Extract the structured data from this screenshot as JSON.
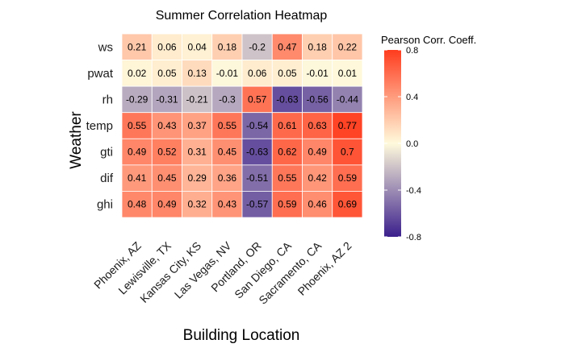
{
  "chart_data": {
    "type": "heatmap",
    "title": "Summer Correlation Heatmap",
    "xlabel": "Building Location",
    "ylabel": "Weather",
    "x_categories": [
      "Phoenix, AZ",
      "Lewisville, TX",
      "Kansas City, KS",
      "Las Vegas, NV",
      "Portland, OR",
      "San Diego, CA",
      "Sacramento, CA",
      "Phoenix, AZ 2"
    ],
    "y_categories": [
      "ws",
      "pwat",
      "rh",
      "temp",
      "gti",
      "dif",
      "ghi"
    ],
    "values": [
      [
        0.21,
        0.06,
        0.04,
        0.18,
        -0.2,
        0.47,
        0.18,
        0.22
      ],
      [
        0.02,
        0.05,
        0.13,
        -0.01,
        0.06,
        0.05,
        -0.01,
        0.01
      ],
      [
        -0.29,
        -0.31,
        -0.21,
        -0.3,
        0.57,
        -0.63,
        -0.56,
        -0.44
      ],
      [
        0.55,
        0.43,
        0.37,
        0.55,
        -0.54,
        0.61,
        0.63,
        0.77
      ],
      [
        0.49,
        0.52,
        0.31,
        0.45,
        -0.63,
        0.62,
        0.49,
        0.7
      ],
      [
        0.41,
        0.45,
        0.29,
        0.36,
        -0.51,
        0.55,
        0.42,
        0.59
      ],
      [
        0.48,
        0.49,
        0.32,
        0.43,
        -0.57,
        0.59,
        0.46,
        0.69
      ]
    ],
    "legend": {
      "title": "Pearson Corr. Coeff.",
      "ticks": [
        "0.8",
        "0.4",
        "0.0",
        "-0.4",
        "-0.8"
      ],
      "range": [
        -0.8,
        0.8
      ],
      "placement": "right"
    },
    "colors": {
      "low": "#3b1f8c",
      "mid": "#fffadc",
      "high": "#ff3c1e",
      "grid_line": "#ffffff"
    },
    "grid": false
  }
}
